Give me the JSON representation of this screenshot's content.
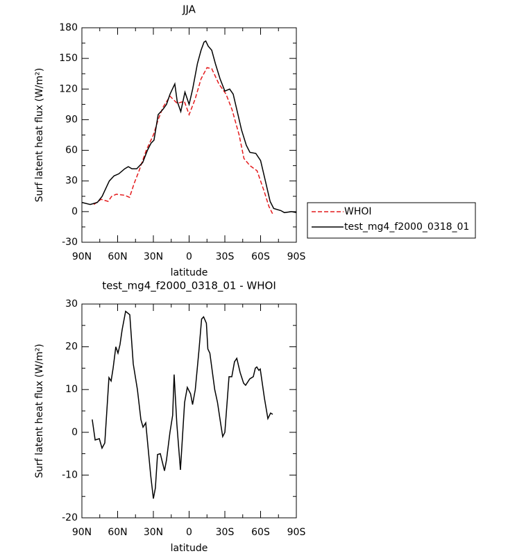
{
  "chart_data": [
    {
      "type": "line",
      "title": "JJA",
      "xlabel": "latitude",
      "ylabel": "Surf latent heat flux (W/m²)",
      "xlim": [
        90,
        -90
      ],
      "xticks": [
        {
          "value": 90,
          "label": "90N"
        },
        {
          "value": 60,
          "label": "60N"
        },
        {
          "value": 30,
          "label": "30N"
        },
        0,
        {
          "value": -30,
          "label": "30S"
        },
        {
          "value": -60,
          "label": "60S"
        },
        {
          "value": -90,
          "label": "90S"
        }
      ],
      "ylim": [
        -30,
        180
      ],
      "yticks": [
        -30,
        0,
        30,
        60,
        90,
        120,
        150,
        180
      ],
      "legend": "right",
      "series": [
        {
          "name": "WHOI",
          "color": "#e41a1c",
          "dash": true,
          "x": [
            80,
            74,
            68,
            65,
            61,
            54,
            50,
            46,
            42,
            36,
            30,
            26,
            22,
            16,
            10,
            4,
            0,
            -5,
            -10,
            -15,
            -19,
            -25,
            -31,
            -36,
            -42,
            -46,
            -51,
            -57,
            -63,
            -67,
            -70
          ],
          "values": [
            7,
            12,
            10,
            15,
            17,
            16,
            14,
            28,
            40,
            60,
            75,
            90,
            102,
            113,
            106,
            108,
            95,
            110,
            130,
            141,
            140,
            125,
            115,
            100,
            75,
            52,
            45,
            40,
            20,
            5,
            -2
          ]
        },
        {
          "name": "test_mg4_f2000_0318_01",
          "color": "#000000",
          "dash": false,
          "x": [
            90,
            83,
            77,
            73,
            71,
            67,
            63,
            59,
            54,
            51,
            48,
            44,
            39,
            35,
            32,
            29.5,
            26,
            22,
            19,
            16,
            12,
            10,
            7,
            3.5,
            0,
            -3,
            -7,
            -10,
            -12.5,
            -14,
            -16,
            -19,
            -22,
            -26,
            -30,
            -34,
            -37,
            -41,
            -44,
            -48,
            -51,
            -56,
            -60,
            -64,
            -68,
            -71,
            -77,
            -80,
            -86,
            -90
          ],
          "values": [
            9,
            7,
            9,
            15,
            20,
            30,
            35,
            37,
            42,
            44,
            42,
            42,
            48,
            60,
            67,
            70,
            95,
            100,
            105,
            115,
            125,
            108,
            98,
            117,
            105,
            120,
            145,
            158,
            166,
            167,
            162,
            158,
            145,
            130,
            118,
            120,
            115,
            95,
            80,
            65,
            58,
            57,
            50,
            30,
            10,
            3,
            1,
            -1,
            0,
            -1
          ]
        }
      ]
    },
    {
      "type": "line",
      "title": "test_mg4_f2000_0318_01 - WHOI",
      "xlabel": "latitude",
      "ylabel": "Surf latent heat flux (W/m²)",
      "xlim": [
        90,
        -90
      ],
      "xticks": [
        {
          "value": 90,
          "label": "90N"
        },
        {
          "value": 60,
          "label": "60N"
        },
        {
          "value": 30,
          "label": "30N"
        },
        0,
        {
          "value": -30,
          "label": "30S"
        },
        {
          "value": -60,
          "label": "60S"
        },
        {
          "value": -90,
          "label": "90S"
        }
      ],
      "ylim": [
        -20,
        30
      ],
      "yticks": [
        -20,
        -10,
        0,
        10,
        20,
        30
      ],
      "series": [
        {
          "color": "#000000",
          "dash": false,
          "x": [
            81.3,
            78.9,
            75.4,
            73.1,
            70.8,
            67.3,
            65.5,
            63.8,
            61.5,
            59.7,
            58,
            56.2,
            53.3,
            49.8,
            46.9,
            43.4,
            40.5,
            38.7,
            36.4,
            32.3,
            30,
            28.3,
            26.5,
            24.2,
            20.7,
            19,
            16.1,
            13.8,
            12.6,
            10.3,
            7.3,
            3.8,
            1.5,
            -1.2,
            -2.9,
            -5.2,
            -8.2,
            -10.5,
            -12.2,
            -14.5,
            -15.7,
            -17.4,
            -21.5,
            -23.8,
            -26.5,
            -28.2,
            -30,
            -33.5,
            -35.8,
            -38.1,
            -40,
            -42.8,
            -45.7,
            -47.4,
            -50.9,
            -53.9,
            -55.6,
            -56.8,
            -58.5,
            -59.7,
            -63.2,
            -66.1,
            -68.4,
            -70.2
          ],
          "values": [
            3,
            -1.8,
            -1.5,
            -3.7,
            -2.5,
            12.8,
            12,
            15,
            20,
            18.5,
            20.5,
            24,
            28.3,
            27.5,
            16,
            10,
            3,
            1.2,
            2.2,
            -10,
            -15.5,
            -13,
            -5.2,
            -5,
            -9,
            -6.5,
            0,
            4,
            13.5,
            2,
            -8.8,
            7,
            10.5,
            9,
            6.5,
            10,
            19,
            26.5,
            27,
            25.5,
            19.5,
            18.5,
            10,
            7,
            2,
            -1,
            0,
            13,
            13,
            16.5,
            17.3,
            14,
            11.5,
            11,
            12.5,
            13,
            15,
            15.3,
            14.5,
            14.8,
            8,
            3.2,
            4.5,
            4.2
          ]
        }
      ]
    }
  ]
}
